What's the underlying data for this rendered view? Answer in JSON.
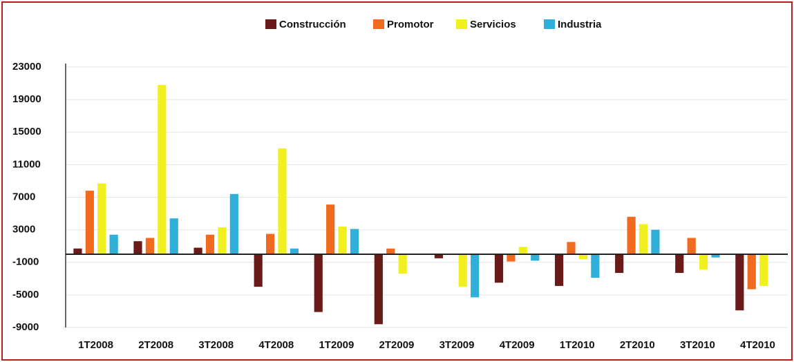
{
  "chart_data": {
    "type": "bar",
    "categories": [
      "1T2008",
      "2T2008",
      "3T2008",
      "4T2008",
      "1T2009",
      "2T2009",
      "3T2009",
      "4T2009",
      "1T2010",
      "2T2010",
      "3T2010",
      "4T2010"
    ],
    "series": [
      {
        "name": "Construcción",
        "color": "#6b1a1a",
        "values": [
          700,
          1600,
          800,
          -4000,
          -7100,
          -8600,
          -500,
          -3500,
          -3900,
          -2300,
          -2300,
          -6900
        ]
      },
      {
        "name": "Promotor",
        "color": "#f06a20",
        "values": [
          7800,
          2000,
          2400,
          2500,
          6100,
          700,
          0,
          -900,
          1500,
          4600,
          2000,
          -4300
        ]
      },
      {
        "name": "Servicios",
        "color": "#f0f020",
        "values": [
          8700,
          20800,
          3300,
          13000,
          3400,
          -2400,
          -4000,
          900,
          -600,
          3700,
          -1900,
          -3900
        ]
      },
      {
        "name": "Industria",
        "color": "#30b0d8",
        "values": [
          2400,
          4400,
          7400,
          700,
          3100,
          0,
          -5300,
          -800,
          -2900,
          3000,
          -400,
          0
        ]
      }
    ],
    "ylim": [
      -9000,
      23000
    ],
    "yticks": [
      -9000,
      -5000,
      -1000,
      3000,
      7000,
      11000,
      15000,
      19000,
      23000
    ],
    "grid": true,
    "legend": "top"
  }
}
